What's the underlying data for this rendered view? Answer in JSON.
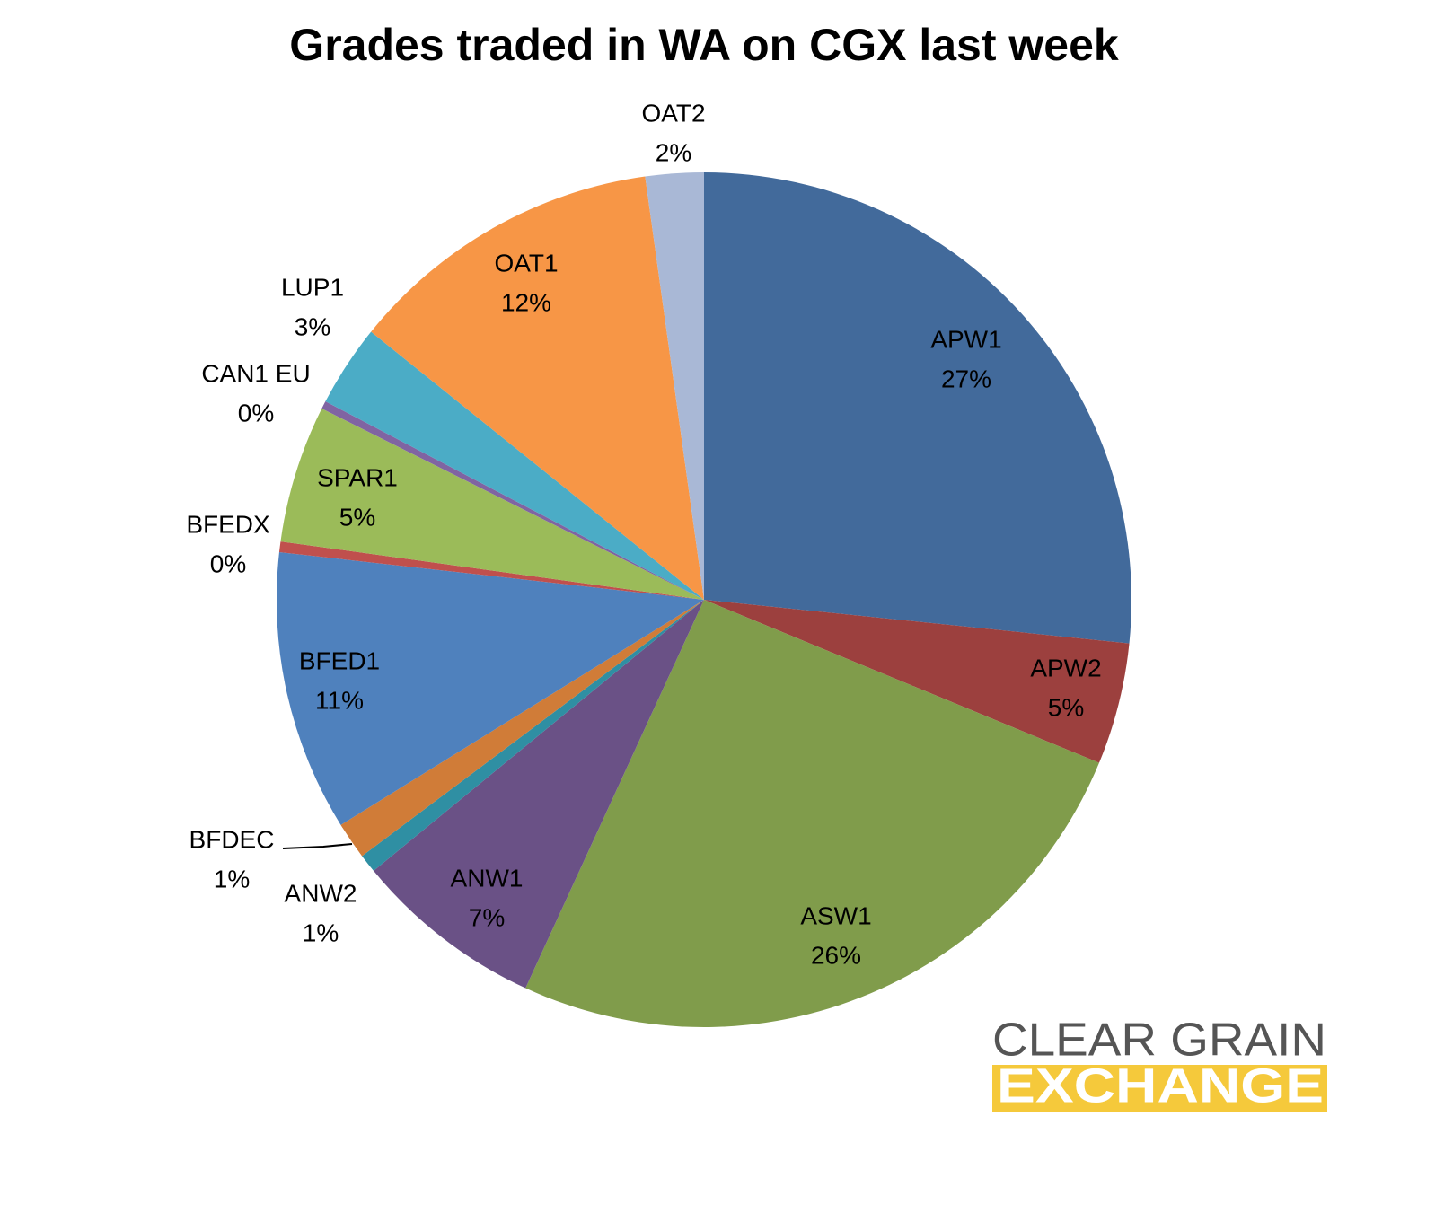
{
  "chart_data": {
    "type": "pie",
    "title": "Grades traded in WA on CGX last week",
    "categories": [
      "APW1",
      "APW2",
      "ASW1",
      "ANW1",
      "ANW2",
      "BFDEC",
      "BFED1",
      "BFEDX",
      "SPAR1",
      "CAN1 EU",
      "LUP1",
      "OAT1",
      "OAT2"
    ],
    "values": [
      26.6,
      4.6,
      25.6,
      7.2,
      0.7,
      1.4,
      10.6,
      0.4,
      5.2,
      0.3,
      3.1,
      12.0,
      2.2
    ],
    "value_labels": [
      "27%",
      "5%",
      "26%",
      "7%",
      "1%",
      "1%",
      "11%",
      "0%",
      "5%",
      "0%",
      "3%",
      "12%",
      "2%"
    ],
    "colors": [
      "#426a9b",
      "#9c403e",
      "#809c4b",
      "#6a5186",
      "#2f8fa3",
      "#d07c38",
      "#4f81bd",
      "#c0504d",
      "#9bbb59",
      "#8064a2",
      "#4bacc6",
      "#f79646",
      "#a9b8d6"
    ]
  },
  "logo": {
    "line1": "CLEAR GRAIN",
    "line2": "EXCHANGE"
  }
}
